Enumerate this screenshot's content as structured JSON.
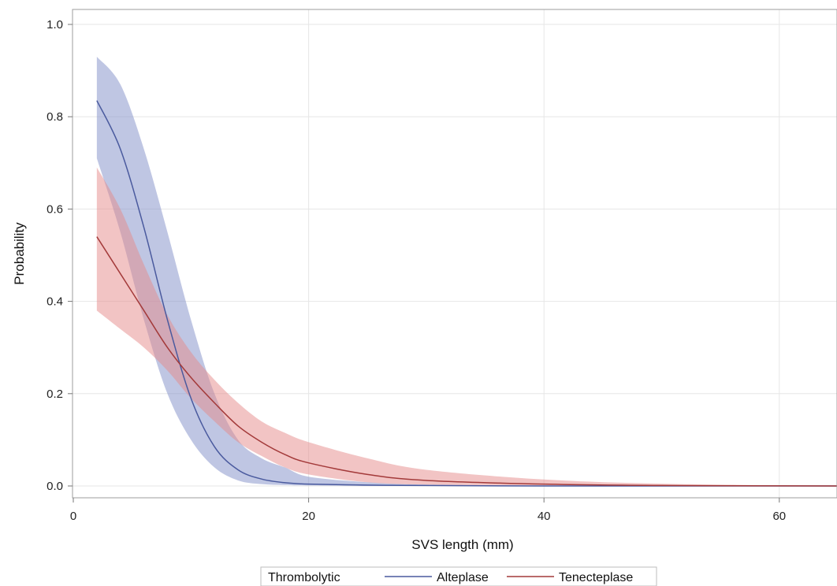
{
  "chart_data": {
    "type": "line",
    "title": "",
    "xlabel": "SVS length (mm)",
    "ylabel": "Probability",
    "xlim": [
      0,
      65
    ],
    "ylim": [
      0,
      1.0
    ],
    "x_ticks": [
      0,
      20,
      40,
      60
    ],
    "y_ticks": [
      0.0,
      0.2,
      0.4,
      0.6,
      0.8,
      1.0
    ],
    "x_tick_labels": [
      "0",
      "20",
      "40",
      "60"
    ],
    "y_tick_labels": [
      "0.0",
      "0.2",
      "0.4",
      "0.6",
      "0.8",
      "1.0"
    ],
    "grid": true,
    "legend": {
      "title": "Thrombolytic",
      "placement": "bottom-center",
      "entries": [
        "Alteplase",
        "Tenecteplase"
      ]
    },
    "series": [
      {
        "name": "Alteplase",
        "color": "#4a5a9e",
        "band_color": "#7f8dc8",
        "x": [
          2,
          4,
          6,
          8,
          10,
          12,
          14,
          16,
          18,
          20,
          25,
          30,
          40,
          50,
          65
        ],
        "y": [
          0.835,
          0.73,
          0.56,
          0.36,
          0.19,
          0.085,
          0.035,
          0.015,
          0.007,
          0.004,
          0.002,
          0.001,
          0.0,
          0.0,
          0.0
        ],
        "lower": [
          0.71,
          0.55,
          0.36,
          0.2,
          0.1,
          0.04,
          0.012,
          0.004,
          0.002,
          0.001,
          0.0,
          0.0,
          0.0,
          0.0,
          0.0
        ],
        "upper": [
          0.93,
          0.87,
          0.73,
          0.55,
          0.36,
          0.2,
          0.1,
          0.06,
          0.04,
          0.02,
          0.008,
          0.003,
          0.001,
          0.0,
          0.0
        ]
      },
      {
        "name": "Tenecteplase",
        "color": "#a33a3a",
        "band_color": "#e68a8a",
        "x": [
          2,
          4,
          6,
          8,
          10,
          12,
          14,
          16,
          18,
          20,
          25,
          30,
          40,
          50,
          65
        ],
        "y": [
          0.54,
          0.46,
          0.38,
          0.3,
          0.235,
          0.18,
          0.13,
          0.095,
          0.068,
          0.05,
          0.025,
          0.012,
          0.004,
          0.001,
          0.0
        ],
        "lower": [
          0.38,
          0.34,
          0.3,
          0.25,
          0.19,
          0.14,
          0.095,
          0.065,
          0.04,
          0.025,
          0.008,
          0.003,
          0.001,
          0.0,
          0.0
        ],
        "upper": [
          0.69,
          0.6,
          0.48,
          0.37,
          0.29,
          0.23,
          0.18,
          0.14,
          0.115,
          0.095,
          0.06,
          0.035,
          0.014,
          0.005,
          0.0
        ]
      }
    ]
  }
}
